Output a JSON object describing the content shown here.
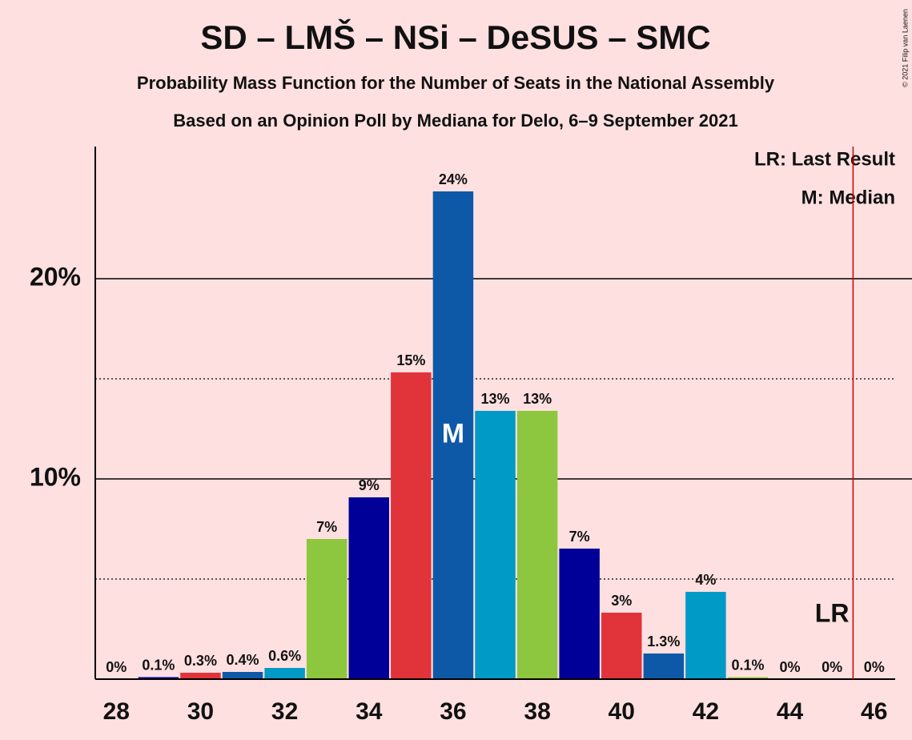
{
  "chart_data": {
    "type": "bar",
    "title": "SD – LMŠ – NSi – DeSUS – SMC",
    "subtitle": [
      "Probability Mass Function for the Number of Seats in the National Assembly",
      "Based on an Opinion Poll by Mediana for Delo, 6–9 September 2021"
    ],
    "copyright": "© 2021 Filip van Laenen",
    "x": [
      28,
      29,
      30,
      31,
      32,
      33,
      34,
      35,
      36,
      37,
      38,
      39,
      40,
      41,
      42,
      43,
      44,
      45,
      46
    ],
    "values": [
      0,
      0.1,
      0.32,
      0.36,
      0.56,
      7.0,
      9.08,
      15.32,
      24.36,
      13.4,
      13.4,
      6.52,
      3.32,
      1.28,
      4.36,
      0.1,
      0,
      0,
      0
    ],
    "value_labels": [
      "0%",
      "0.1%",
      "0.3%",
      "0.4%",
      "0.6%",
      "7%",
      "9%",
      "15%",
      "24%",
      "13%",
      "13%",
      "7%",
      "3%",
      "1.3%",
      "4%",
      "0.1%",
      "0%",
      "0%",
      "0%"
    ],
    "colors": [
      "#8dc63f",
      "#000099",
      "#e1333a",
      "#0e58a8",
      "#009ac7"
    ],
    "xlim": [
      27.5,
      46.5
    ],
    "xticks": [
      28,
      30,
      32,
      34,
      36,
      38,
      40,
      42,
      44,
      46
    ],
    "ylim": [
      0,
      26.6
    ],
    "yticks": [
      {
        "value": 10,
        "label": "10%"
      },
      {
        "value": 20,
        "label": "20%"
      }
    ],
    "minor_yticks": [
      5,
      15
    ],
    "median": 36,
    "median_label": "M",
    "last_result": 45,
    "last_result_label": "LR",
    "last_result_color": "#cc0000",
    "legend": [
      "LR: Last Result",
      "M: Median"
    ],
    "legend_position": "upper right"
  }
}
